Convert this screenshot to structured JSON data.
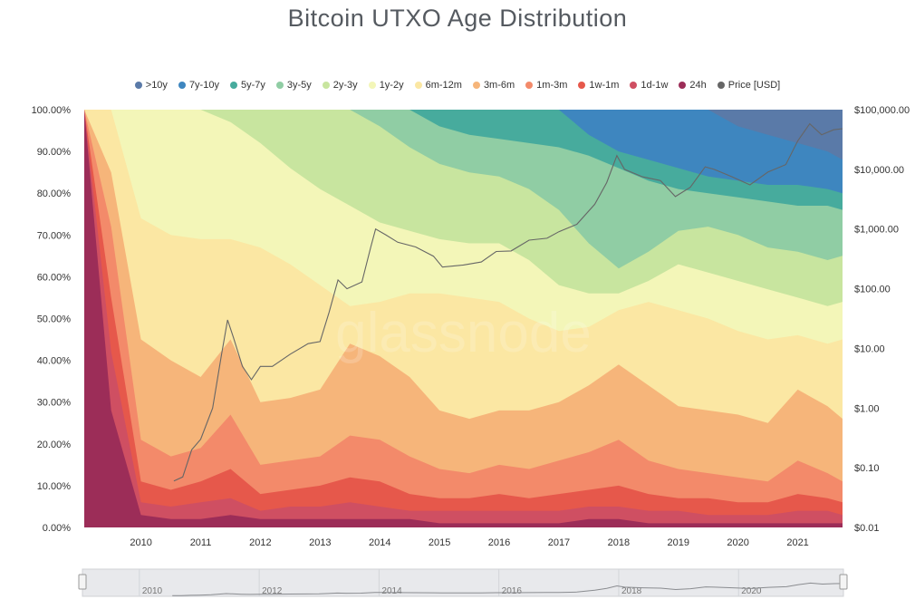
{
  "chart_data": {
    "type": "area",
    "title": "Bitcoin UTXO Age Distribution",
    "watermark": "glassnode",
    "stacking": "percent",
    "y_left_ticks": [
      "0.00%",
      "10.00%",
      "20.00%",
      "30.00%",
      "40.00%",
      "50.00%",
      "60.00%",
      "70.00%",
      "80.00%",
      "90.00%",
      "100.00%"
    ],
    "y_right_ticks": [
      "$0.01",
      "$0.10",
      "$1.00",
      "$10.00",
      "$100.00",
      "$1,000.00",
      "$10,000.00",
      "$100,000.00"
    ],
    "y_right_scale": "log",
    "x_ticks": [
      "2010",
      "2011",
      "2012",
      "2013",
      "2014",
      "2015",
      "2016",
      "2017",
      "2018",
      "2019",
      "2020",
      "2021"
    ],
    "navigator_ticks": [
      "2010",
      "2012",
      "2014",
      "2016",
      "2018",
      "2020"
    ],
    "x": [
      2009.05,
      2009.5,
      2010.0,
      2010.5,
      2011.0,
      2011.5,
      2012.0,
      2012.5,
      2013.0,
      2013.5,
      2014.0,
      2014.5,
      2015.0,
      2015.5,
      2016.0,
      2016.5,
      2017.0,
      2017.5,
      2018.0,
      2018.5,
      2019.0,
      2019.5,
      2020.0,
      2020.5,
      2021.0,
      2021.5,
      2021.75
    ],
    "series": [
      {
        "name": ">10y",
        "color": "#5a7aa8",
        "top": [
          100,
          100,
          100,
          100,
          100,
          100,
          100,
          100,
          100,
          100,
          100,
          100,
          100,
          100,
          100,
          100,
          100,
          100,
          100,
          100,
          100,
          100,
          100,
          100,
          100,
          100,
          100
        ]
      },
      {
        "name": "7y-10y",
        "color": "#3e86bf",
        "top": [
          100,
          100,
          100,
          100,
          100,
          100,
          100,
          100,
          100,
          100,
          100,
          100,
          100,
          100,
          100,
          100,
          100,
          100,
          100,
          100,
          100,
          100,
          96,
          94,
          92,
          90,
          88
        ]
      },
      {
        "name": "5y-7y",
        "color": "#47ab9d",
        "top": [
          100,
          100,
          100,
          100,
          100,
          100,
          100,
          100,
          100,
          100,
          100,
          100,
          100,
          100,
          100,
          100,
          100,
          94,
          90,
          88,
          86,
          84,
          83,
          82,
          82,
          81,
          80
        ]
      },
      {
        "name": "3y-5y",
        "color": "#90cda4",
        "top": [
          100,
          100,
          100,
          100,
          100,
          100,
          100,
          100,
          100,
          100,
          100,
          100,
          96,
          94,
          93,
          92,
          91,
          89,
          86,
          83,
          81,
          80,
          79,
          78,
          77,
          77,
          76
        ]
      },
      {
        "name": "2y-3y",
        "color": "#c8e59f",
        "top": [
          100,
          100,
          100,
          100,
          100,
          100,
          100,
          100,
          100,
          100,
          96,
          91,
          87,
          85,
          84,
          81,
          76,
          68,
          62,
          66,
          71,
          72,
          70,
          67,
          66,
          64,
          65
        ]
      },
      {
        "name": "1y-2y",
        "color": "#f3f6b8",
        "top": [
          100,
          100,
          100,
          100,
          100,
          97,
          92,
          86,
          81,
          77,
          73,
          71,
          69,
          68,
          68,
          64,
          58,
          56,
          56,
          59,
          63,
          61,
          59,
          57,
          55,
          53,
          54
        ]
      },
      {
        "name": "6m-12m",
        "color": "#fbe7a3",
        "top": [
          100,
          100,
          74,
          70,
          69,
          69,
          67,
          63,
          58,
          53,
          54,
          56,
          56,
          55,
          54,
          50,
          47,
          48,
          52,
          54,
          52,
          50,
          47,
          45,
          46,
          44,
          45
        ]
      },
      {
        "name": "3m-6m",
        "color": "#f6b57a",
        "top": [
          100,
          85,
          45,
          40,
          36,
          45,
          30,
          31,
          33,
          44,
          41,
          36,
          28,
          26,
          28,
          28,
          30,
          34,
          39,
          34,
          29,
          28,
          27,
          25,
          33,
          29,
          26
        ]
      },
      {
        "name": "1m-3m",
        "color": "#f38a6a",
        "top": [
          100,
          72,
          21,
          17,
          19,
          27,
          15,
          16,
          17,
          22,
          21,
          17,
          14,
          13,
          15,
          14,
          16,
          18,
          21,
          16,
          14,
          13,
          12,
          11,
          16,
          13,
          11
        ]
      },
      {
        "name": "1w-1m",
        "color": "#e6584b",
        "top": [
          100,
          55,
          11,
          9,
          11,
          14,
          8,
          9,
          10,
          12,
          11,
          8,
          7,
          7,
          8,
          7,
          8,
          9,
          10,
          8,
          7,
          7,
          6,
          6,
          8,
          7,
          6
        ]
      },
      {
        "name": "1d-1w",
        "color": "#cf4f62",
        "top": [
          100,
          42,
          6,
          5,
          6,
          7,
          4,
          5,
          5,
          6,
          5,
          4,
          4,
          4,
          4,
          4,
          4,
          5,
          5,
          4,
          4,
          3,
          3,
          3,
          4,
          4,
          3
        ]
      },
      {
        "name": "24h",
        "color": "#9c2d58",
        "top": [
          100,
          28,
          3,
          2,
          2,
          3,
          2,
          2,
          2,
          2,
          2,
          2,
          1,
          1,
          1,
          1,
          1,
          2,
          2,
          1,
          1,
          1,
          1,
          1,
          1,
          1,
          1
        ]
      }
    ],
    "price": {
      "name": "Price [USD]",
      "color": "#666666",
      "x": [
        2010.55,
        2010.7,
        2010.85,
        2011.0,
        2011.2,
        2011.35,
        2011.45,
        2011.55,
        2011.7,
        2011.85,
        2012.0,
        2012.2,
        2012.5,
        2012.8,
        2013.0,
        2013.15,
        2013.3,
        2013.45,
        2013.7,
        2013.85,
        2013.93,
        2014.1,
        2014.3,
        2014.6,
        2014.9,
        2015.05,
        2015.4,
        2015.7,
        2015.95,
        2016.2,
        2016.5,
        2016.8,
        2017.0,
        2017.3,
        2017.6,
        2017.8,
        2017.97,
        2018.1,
        2018.4,
        2018.7,
        2018.95,
        2019.2,
        2019.45,
        2019.6,
        2019.9,
        2020.2,
        2020.5,
        2020.8,
        2021.0,
        2021.2,
        2021.4,
        2021.6,
        2021.75
      ],
      "y": [
        0.06,
        0.07,
        0.2,
        0.3,
        1.0,
        8,
        30,
        15,
        5,
        3,
        5,
        5,
        8,
        12,
        13,
        40,
        140,
        100,
        130,
        500,
        1000,
        800,
        600,
        500,
        350,
        230,
        250,
        280,
        420,
        430,
        650,
        700,
        900,
        1200,
        2600,
        6000,
        17000,
        10000,
        7500,
        6500,
        3500,
        5000,
        11000,
        10000,
        7500,
        5500,
        9000,
        12000,
        30000,
        58000,
        38000,
        46000,
        48000
      ]
    }
  }
}
